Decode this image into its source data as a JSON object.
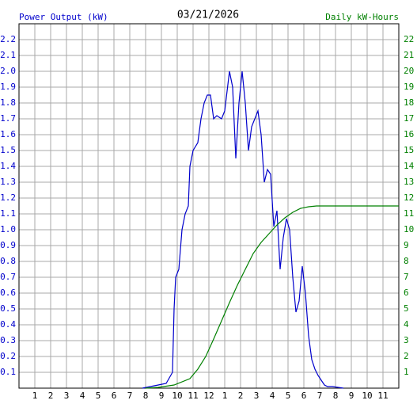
{
  "chart_data": {
    "type": "line",
    "title": "03/21/2026",
    "y_label": "Power Output (kW)",
    "y2_label": "Daily kW-Hours",
    "xlim": [
      0,
      24
    ],
    "ylim": [
      0,
      2.3
    ],
    "y2lim": [
      0,
      23
    ],
    "grid": true,
    "xticks": [
      1,
      2,
      3,
      4,
      5,
      6,
      7,
      8,
      9,
      10,
      11,
      12,
      {
        "value": 13,
        "label": "1"
      },
      {
        "value": 14,
        "label": "2"
      },
      {
        "value": 15,
        "label": "3"
      },
      {
        "value": 16,
        "label": "4"
      },
      {
        "value": 17,
        "label": "5"
      },
      {
        "value": 18,
        "label": "6"
      },
      {
        "value": 19,
        "label": "7"
      },
      {
        "value": 20,
        "label": "8"
      },
      {
        "value": 21,
        "label": "9"
      },
      {
        "value": 22,
        "label": "10"
      },
      {
        "value": 23,
        "label": "11"
      }
    ],
    "yticks": [
      0.1,
      0.2,
      0.3,
      0.4,
      0.5,
      0.6,
      0.7,
      0.8,
      0.9,
      {
        "value": 1,
        "label": "1.0"
      },
      1.1,
      1.2,
      1.3,
      1.4,
      1.5,
      1.6,
      1.7,
      1.8,
      1.9,
      {
        "value": 2,
        "label": "2.0"
      },
      2.1,
      2.2
    ],
    "y2ticks": [
      1,
      2,
      3,
      4,
      5,
      6,
      7,
      8,
      9,
      10,
      11,
      12,
      13,
      14,
      15,
      16,
      17,
      18,
      19,
      20,
      21,
      22
    ],
    "series": [
      {
        "color": "#0000cc",
        "x": [
          7.8,
          8.8,
          9.3,
          9.7,
          9.8,
          9.9,
          10.1,
          10.3,
          10.5,
          10.7,
          10.8,
          11.0,
          11.3,
          11.5,
          11.7,
          11.9,
          12.1,
          12.3,
          12.5,
          12.8,
          13.0,
          13.3,
          13.5,
          13.7,
          13.9,
          14.1,
          14.3,
          14.5,
          14.7,
          14.9,
          15.1,
          15.3,
          15.5,
          15.7,
          15.9,
          16.1,
          16.3,
          16.5,
          16.7,
          16.9,
          17.1,
          17.3,
          17.5,
          17.7,
          17.9,
          18.1,
          18.3,
          18.5,
          18.7,
          18.9,
          19.1,
          19.3,
          19.5,
          19.8,
          20.5
        ],
        "values": [
          0.0,
          0.02,
          0.03,
          0.1,
          0.5,
          0.7,
          0.75,
          1.0,
          1.1,
          1.15,
          1.4,
          1.5,
          1.55,
          1.7,
          1.8,
          1.85,
          1.85,
          1.7,
          1.72,
          1.7,
          1.75,
          2.0,
          1.9,
          1.45,
          1.8,
          2.0,
          1.8,
          1.5,
          1.65,
          1.7,
          1.75,
          1.6,
          1.3,
          1.38,
          1.35,
          1.02,
          1.12,
          0.75,
          0.95,
          1.07,
          1.0,
          0.7,
          0.48,
          0.55,
          0.77,
          0.6,
          0.33,
          0.18,
          0.12,
          0.08,
          0.05,
          0.02,
          0.01,
          0.01,
          0.0
        ]
      },
      {
        "color": "#008000",
        "axis": "y2",
        "x": [
          8.0,
          8.8,
          9.8,
          10.8,
          11.3,
          11.8,
          12.3,
          12.8,
          13.3,
          13.8,
          14.3,
          14.8,
          15.3,
          15.8,
          16.3,
          16.8,
          17.3,
          17.8,
          18.3,
          18.8,
          24
        ],
        "values": [
          0.0,
          0.05,
          0.2,
          0.6,
          1.2,
          2.0,
          3.1,
          4.25,
          5.4,
          6.5,
          7.5,
          8.5,
          9.2,
          9.75,
          10.3,
          10.75,
          11.1,
          11.35,
          11.45,
          11.5,
          11.5
        ]
      }
    ]
  }
}
